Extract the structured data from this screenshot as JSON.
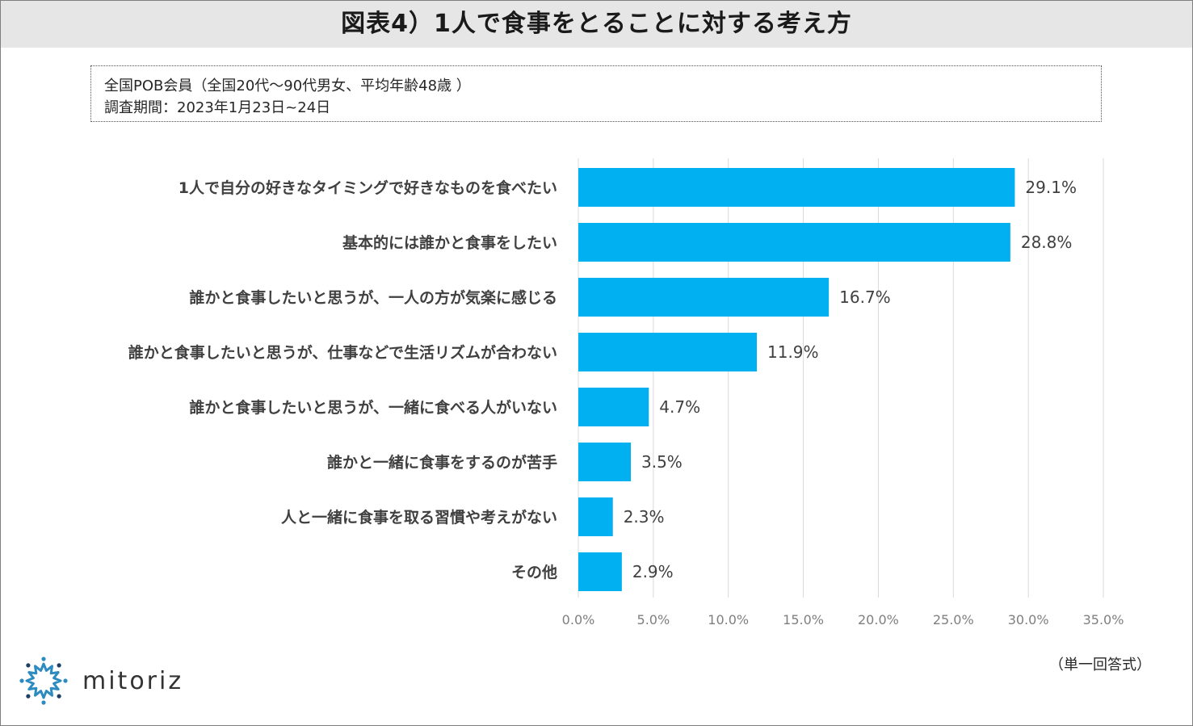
{
  "title": "図表4）1人で食事をとることに対する考え方",
  "info": {
    "line1": "全国POB会員（全国20代～90代男女、平均年齢48歳 ）",
    "line2": "調査期間：2023年1月23日~24日"
  },
  "note": "（単一回答式）",
  "logo": {
    "text": "mitoriz",
    "icon": "sun-burst-logo-icon",
    "color": "#2e8bc0"
  },
  "colors": {
    "bar": "#00b0f0",
    "grid": "#d9d9d9",
    "axis_text": "#7f7f7f",
    "label_text": "#404040"
  },
  "chart_data": {
    "type": "bar",
    "orientation": "horizontal",
    "categories": [
      "1人で自分の好きなタイミングで好きなものを食べたい",
      "基本的には誰かと食事をしたい",
      "誰かと食事したいと思うが、一人の方が気楽に感じる",
      "誰かと食事したいと思うが、仕事などで生活リズムが合わない",
      "誰かと食事したいと思うが、一緒に食べる人がいない",
      "誰かと一緒に食事をするのが苦手",
      "人と一緒に食事を取る習慣や考えがない",
      "その他"
    ],
    "values": [
      29.1,
      28.8,
      16.7,
      11.9,
      4.7,
      3.5,
      2.3,
      2.9
    ],
    "value_labels": [
      "29.1%",
      "28.8%",
      "16.7%",
      "11.9%",
      "4.7%",
      "3.5%",
      "2.3%",
      "2.9%"
    ],
    "xlim": [
      0,
      35
    ],
    "x_ticks": [
      0,
      5,
      10,
      15,
      20,
      25,
      30,
      35
    ],
    "x_tick_labels": [
      "0.0%",
      "5.0%",
      "10.0%",
      "15.0%",
      "20.0%",
      "25.0%",
      "30.0%",
      "35.0%"
    ],
    "grid": true,
    "legend": "none",
    "title": "",
    "xlabel": "",
    "ylabel": ""
  }
}
